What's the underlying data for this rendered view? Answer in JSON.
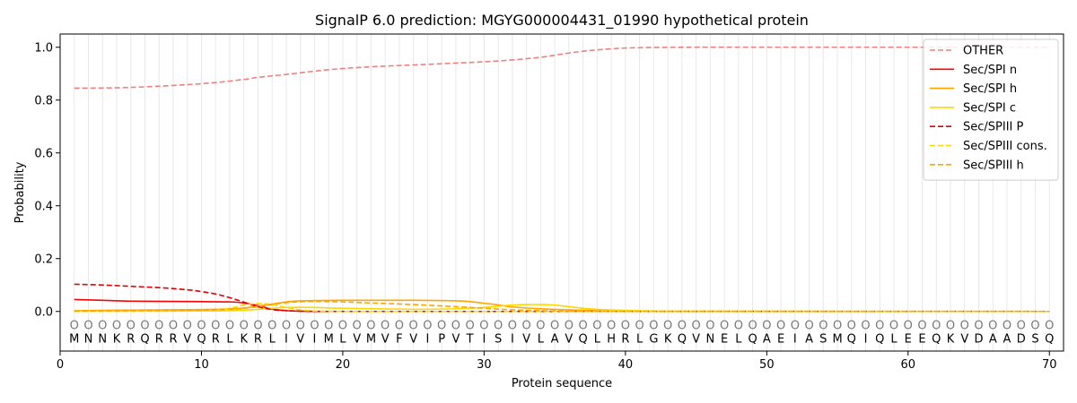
{
  "chart_data": {
    "type": "line",
    "title": "SignalP 6.0 prediction: MGYG000004431_01990 hypothetical protein",
    "xlabel": "Protein sequence",
    "ylabel": "Probability",
    "xlim": [
      0,
      71
    ],
    "ylim": [
      -0.15,
      1.05
    ],
    "xticks": [
      0,
      10,
      20,
      30,
      40,
      50,
      60,
      70
    ],
    "yticks": [
      0.0,
      0.2,
      0.4,
      0.6,
      0.8,
      1.0
    ],
    "grid": "vertical lines at each residue",
    "legend_position": "top-right",
    "sequence": [
      "M",
      "N",
      "N",
      "K",
      "R",
      "Q",
      "R",
      "R",
      "V",
      "Q",
      "R",
      "L",
      "K",
      "R",
      "L",
      "I",
      "V",
      "I",
      "M",
      "L",
      "V",
      "M",
      "V",
      "F",
      "V",
      "I",
      "P",
      "V",
      "T",
      "I",
      "S",
      "I",
      "V",
      "L",
      "A",
      "V",
      "Q",
      "L",
      "H",
      "R",
      "L",
      "G",
      "K",
      "Q",
      "V",
      "N",
      "E",
      "L",
      "Q",
      "A",
      "E",
      "I",
      "A",
      "S",
      "M",
      "Q",
      "I",
      "Q",
      "L",
      "E",
      "E",
      "Q",
      "K",
      "V",
      "D",
      "A",
      "A",
      "D",
      "S",
      "Q"
    ],
    "region_label": "O",
    "series": [
      {
        "name": "OTHER",
        "color": "#f08080",
        "dash": "dashed",
        "x": [
          1,
          5,
          10,
          13,
          14,
          16,
          19,
          22,
          25,
          28,
          30,
          32,
          34,
          35,
          36,
          37,
          38,
          39,
          40,
          42,
          45,
          50,
          60,
          70
        ],
        "values": [
          0.845,
          0.848,
          0.862,
          0.878,
          0.886,
          0.897,
          0.915,
          0.926,
          0.933,
          0.94,
          0.945,
          0.952,
          0.962,
          0.97,
          0.978,
          0.985,
          0.99,
          0.994,
          0.997,
          0.999,
          1.0,
          1.0,
          1.0,
          1.0
        ]
      },
      {
        "name": "Sec/SPI n",
        "color": "#ff0000",
        "dash": "solid",
        "x": [
          1,
          3,
          5,
          8,
          10,
          12,
          13,
          14,
          15,
          16,
          17,
          20,
          30,
          40,
          70
        ],
        "values": [
          0.045,
          0.042,
          0.039,
          0.038,
          0.037,
          0.036,
          0.032,
          0.022,
          0.009,
          0.003,
          0.001,
          0.0,
          0.0,
          0.0,
          0.0
        ]
      },
      {
        "name": "Sec/SPI h",
        "color": "#ffa500",
        "dash": "solid",
        "x": [
          1,
          5,
          10,
          12,
          13,
          14,
          15,
          16,
          17,
          18,
          20,
          25,
          28,
          29,
          30,
          31,
          32,
          34,
          36,
          38,
          40,
          45,
          70
        ],
        "values": [
          0.003,
          0.005,
          0.007,
          0.01,
          0.013,
          0.02,
          0.028,
          0.036,
          0.04,
          0.041,
          0.042,
          0.042,
          0.04,
          0.037,
          0.031,
          0.025,
          0.017,
          0.01,
          0.006,
          0.003,
          0.002,
          0.001,
          0.0
        ]
      },
      {
        "name": "Sec/SPI c",
        "color": "#ffd700",
        "dash": "solid",
        "x": [
          1,
          10,
          12,
          13,
          14,
          15,
          16,
          18,
          20,
          25,
          28,
          30,
          31,
          32,
          33,
          34,
          35,
          36,
          37,
          38,
          40,
          42,
          45,
          70
        ],
        "values": [
          0.001,
          0.002,
          0.003,
          0.005,
          0.008,
          0.012,
          0.015,
          0.015,
          0.012,
          0.008,
          0.01,
          0.015,
          0.02,
          0.024,
          0.026,
          0.026,
          0.024,
          0.018,
          0.012,
          0.008,
          0.004,
          0.002,
          0.001,
          0.0
        ]
      },
      {
        "name": "Sec/SPIII P",
        "color": "#dd0000",
        "dash": "dashed",
        "x": [
          1,
          3,
          5,
          7,
          9,
          10,
          11,
          12,
          13,
          14,
          15,
          16,
          17,
          18,
          19,
          20,
          25,
          70
        ],
        "values": [
          0.103,
          0.1,
          0.095,
          0.09,
          0.082,
          0.075,
          0.066,
          0.052,
          0.035,
          0.018,
          0.007,
          0.003,
          0.001,
          0.0,
          0.0,
          0.0,
          0.0,
          0.0
        ]
      },
      {
        "name": "Sec/SPIII cons.",
        "color": "#ffd700",
        "dash": "dashed",
        "x": [
          1,
          10,
          11,
          12,
          13,
          14,
          15,
          16,
          17,
          18,
          20,
          25,
          30,
          35,
          70
        ],
        "values": [
          0.0,
          0.002,
          0.005,
          0.012,
          0.024,
          0.03,
          0.026,
          0.015,
          0.006,
          0.002,
          0.0,
          0.0,
          0.0,
          0.0,
          0.0
        ]
      },
      {
        "name": "Sec/SPIII h",
        "color": "#ffa500",
        "dash": "dashed",
        "x": [
          1,
          5,
          10,
          12,
          13,
          14,
          15,
          16,
          17,
          18,
          20,
          22,
          25,
          28,
          30,
          32,
          34,
          36,
          40,
          70
        ],
        "values": [
          0.001,
          0.003,
          0.005,
          0.008,
          0.012,
          0.018,
          0.026,
          0.033,
          0.037,
          0.038,
          0.036,
          0.032,
          0.026,
          0.018,
          0.012,
          0.006,
          0.003,
          0.001,
          0.0,
          0.0
        ]
      }
    ]
  }
}
